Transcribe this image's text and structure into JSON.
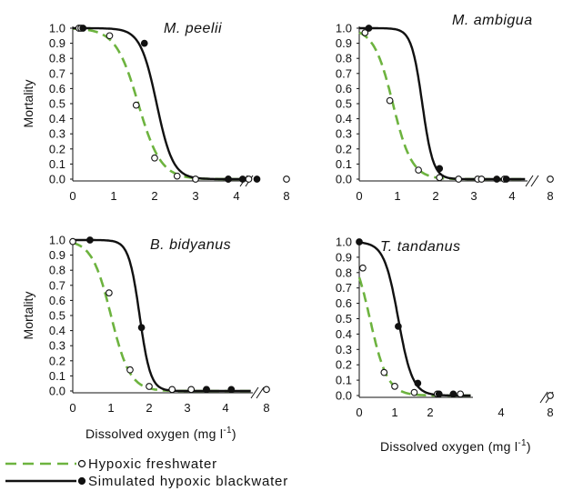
{
  "chart_data": [
    {
      "type": "line",
      "title": "M. peelii",
      "ylabel": "Mortality",
      "xlabel": "",
      "ylim": [
        0,
        1
      ],
      "y_ticks": [
        "0.0",
        "0.1",
        "0.2",
        "0.3",
        "0.4",
        "0.5",
        "0.6",
        "0.7",
        "0.8",
        "0.9",
        "1.0"
      ],
      "x_ticks": [
        "0",
        "1",
        "2",
        "3",
        "4",
        "8"
      ],
      "xlim": [
        0,
        5
      ],
      "axis_break": true,
      "series": [
        {
          "name": "Hypoxic freshwater",
          "style": "dashed",
          "color": "#6db33f",
          "marker": "open-circle",
          "curve": {
            "x50": 1.6,
            "k": 3.6
          },
          "points": [
            [
              0.15,
              1.0
            ],
            [
              0.2,
              1.0
            ],
            [
              0.9,
              0.95
            ],
            [
              1.55,
              0.49
            ],
            [
              2.0,
              0.14
            ],
            [
              2.55,
              0.02
            ],
            [
              3.0,
              0.0
            ],
            [
              3.8,
              0.0
            ],
            [
              4.3,
              0.0
            ],
            [
              8.0,
              0.0
            ]
          ]
        },
        {
          "name": "Simulated hypoxic blackwater",
          "style": "solid",
          "color": "#111111",
          "marker": "filled-circle",
          "curve": {
            "x50": 2.05,
            "k": 5.0
          },
          "points": [
            [
              0.25,
              1.0
            ],
            [
              1.75,
              0.9
            ],
            [
              3.8,
              0.0
            ],
            [
              4.15,
              0.0
            ],
            [
              4.5,
              0.0
            ]
          ]
        }
      ]
    },
    {
      "type": "line",
      "title": "M. ambigua",
      "ylabel": "",
      "xlabel": "",
      "ylim": [
        0,
        1
      ],
      "y_ticks": [
        "0.0",
        "0.1",
        "0.2",
        "0.3",
        "0.4",
        "0.5",
        "0.6",
        "0.7",
        "0.8",
        "0.9",
        "1.0"
      ],
      "x_ticks": [
        "0",
        "1",
        "2",
        "3",
        "4",
        "8"
      ],
      "xlim": [
        0,
        5
      ],
      "axis_break": true,
      "series": [
        {
          "name": "Hypoxic freshwater",
          "style": "dashed",
          "color": "#6db33f",
          "marker": "open-circle",
          "curve": {
            "x50": 0.88,
            "k": 4.0
          },
          "points": [
            [
              0.15,
              0.97
            ],
            [
              0.8,
              0.52
            ],
            [
              1.55,
              0.06
            ],
            [
              2.1,
              0.01
            ],
            [
              2.6,
              0.0
            ],
            [
              3.1,
              0.0
            ],
            [
              3.2,
              0.0
            ],
            [
              3.8,
              0.0
            ],
            [
              8.0,
              0.0
            ]
          ]
        },
        {
          "name": "Simulated hypoxic blackwater",
          "style": "solid",
          "color": "#111111",
          "marker": "filled-circle",
          "curve": {
            "x50": 1.65,
            "k": 7.0
          },
          "points": [
            [
              0.25,
              1.0
            ],
            [
              2.1,
              0.07
            ],
            [
              3.6,
              0.0
            ],
            [
              3.85,
              0.0
            ]
          ]
        }
      ]
    },
    {
      "type": "line",
      "title": "B. bidyanus",
      "ylabel": "Mortality",
      "xlabel": "Dissolved oxygen (mg l-1)",
      "ylim": [
        0,
        1
      ],
      "y_ticks": [
        "0.0",
        "0.1",
        "0.2",
        "0.3",
        "0.4",
        "0.5",
        "0.6",
        "0.7",
        "0.8",
        "0.9",
        "1.0"
      ],
      "x_ticks": [
        "0",
        "1",
        "2",
        "3",
        "4",
        "8"
      ],
      "xlim": [
        0,
        5
      ],
      "axis_break": true,
      "series": [
        {
          "name": "Hypoxic freshwater",
          "style": "dashed",
          "color": "#6db33f",
          "marker": "open-circle",
          "curve": {
            "x50": 1.0,
            "k": 4.0
          },
          "points": [
            [
              0.0,
              0.99
            ],
            [
              0.95,
              0.65
            ],
            [
              1.5,
              0.14
            ],
            [
              2.0,
              0.03
            ],
            [
              2.6,
              0.01
            ],
            [
              3.1,
              0.01
            ],
            [
              3.5,
              0.01
            ],
            [
              8.0,
              0.01
            ]
          ]
        },
        {
          "name": "Simulated hypoxic blackwater",
          "style": "solid",
          "color": "#111111",
          "marker": "filled-circle",
          "curve": {
            "x50": 1.75,
            "k": 7.0
          },
          "points": [
            [
              0.45,
              1.0
            ],
            [
              1.8,
              0.42
            ],
            [
              3.5,
              0.01
            ],
            [
              4.15,
              0.01
            ]
          ]
        }
      ]
    },
    {
      "type": "line",
      "title": "T. tandanus",
      "ylabel": "",
      "xlabel": "Dissolved oxygen (mg l-1)",
      "ylim": [
        0,
        1
      ],
      "y_ticks": [
        "0.0",
        "0.1",
        "0.2",
        "0.3",
        "0.4",
        "0.5",
        "0.6",
        "0.7",
        "0.8",
        "0.9",
        "1.0"
      ],
      "x_ticks": [
        "0",
        "1",
        "2",
        "4",
        "8"
      ],
      "xlim": [
        0,
        5
      ],
      "axis_break": true,
      "series": [
        {
          "name": "Hypoxic freshwater",
          "style": "dashed",
          "color": "#6db33f",
          "marker": "open-circle",
          "curve": {
            "x50": 0.3,
            "k": 4.0
          },
          "points": [
            [
              0.1,
              0.83
            ],
            [
              0.7,
              0.15
            ],
            [
              1.0,
              0.06
            ],
            [
              1.55,
              0.02
            ],
            [
              2.2,
              0.01
            ],
            [
              2.85,
              0.01
            ],
            [
              8.0,
              0.0
            ]
          ]
        },
        {
          "name": "Simulated hypoxic blackwater",
          "style": "solid",
          "color": "#111111",
          "marker": "filled-circle",
          "curve": {
            "x50": 1.1,
            "k": 5.0
          },
          "points": [
            [
              0.0,
              1.0
            ],
            [
              1.1,
              0.45
            ],
            [
              1.65,
              0.08
            ],
            [
              2.25,
              0.01
            ],
            [
              2.65,
              0.01
            ]
          ]
        }
      ]
    }
  ],
  "legend": {
    "freshwater_label": "Hypoxic freshwater",
    "blackwater_label": "Simulated hypoxic blackwater",
    "freshwater_color": "#6db33f",
    "blackwater_color": "#111111"
  },
  "xlabel_text": "Dissolved oxygen (mg l",
  "xlabel_sup": "-1",
  "xlabel_close": ")"
}
